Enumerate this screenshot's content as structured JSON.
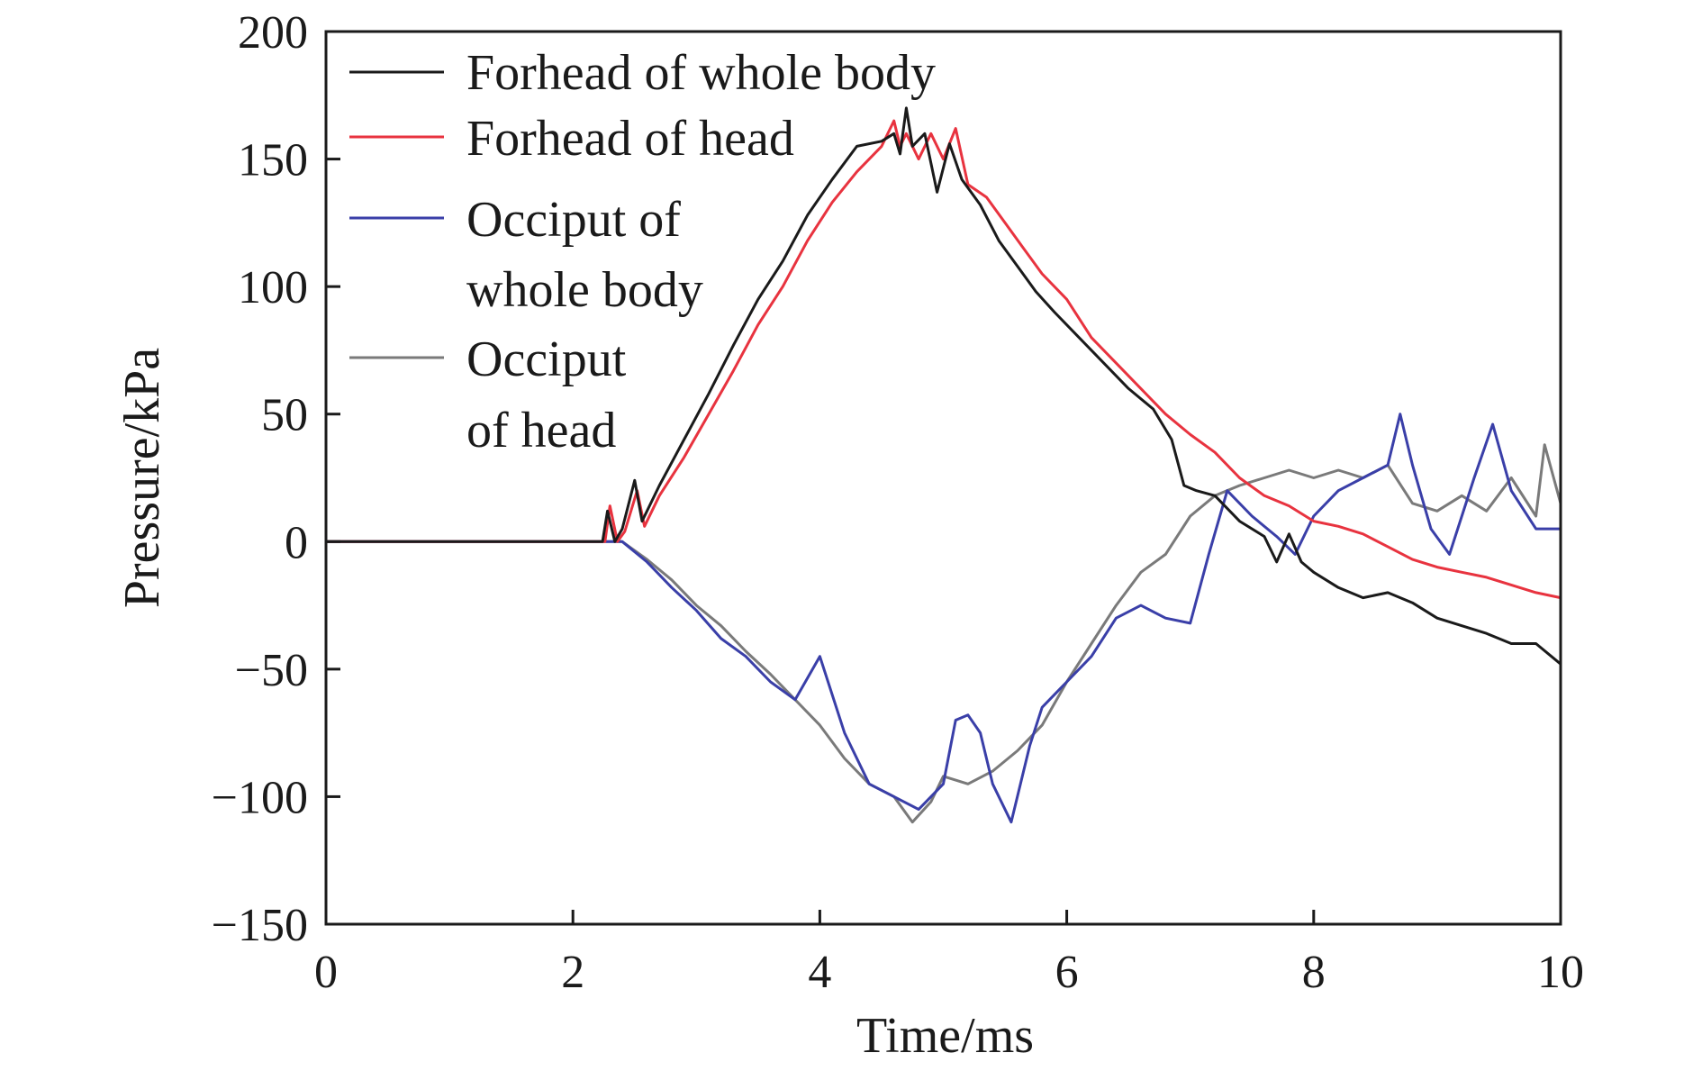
{
  "chart_data": {
    "type": "line",
    "title": "",
    "xlabel": "Time/ms",
    "ylabel": "Pressure/kPa",
    "xlim": [
      0,
      10
    ],
    "ylim": [
      -150,
      200
    ],
    "xticks": [
      0,
      2,
      4,
      6,
      8,
      10
    ],
    "yticks": [
      -150,
      -100,
      -50,
      0,
      50,
      100,
      150,
      200
    ],
    "xtick_labels": [
      "0",
      "2",
      "4",
      "6",
      "8",
      "10"
    ],
    "ytick_labels": [
      "−150",
      "−100",
      "−50",
      "0",
      "50",
      "100",
      "150",
      "200"
    ],
    "grid": false,
    "legend_position": "top-left",
    "series": [
      {
        "name": "Forhead of whole body",
        "color": "#1a1a1a",
        "x": [
          0,
          2.24,
          2.28,
          2.34,
          2.4,
          2.5,
          2.56,
          2.7,
          2.9,
          3.1,
          3.3,
          3.5,
          3.7,
          3.9,
          4.1,
          4.3,
          4.5,
          4.6,
          4.65,
          4.7,
          4.75,
          4.85,
          4.95,
          5.05,
          5.15,
          5.3,
          5.45,
          5.6,
          5.75,
          5.9,
          6.1,
          6.3,
          6.5,
          6.7,
          6.85,
          6.95,
          7.05,
          7.2,
          7.4,
          7.6,
          7.7,
          7.8,
          7.9,
          8.0,
          8.2,
          8.4,
          8.6,
          8.8,
          9.0,
          9.2,
          9.4,
          9.6,
          9.8,
          10.0
        ],
        "y": [
          0,
          0,
          12,
          0,
          5,
          24,
          8,
          22,
          40,
          58,
          77,
          95,
          110,
          128,
          142,
          155,
          157,
          160,
          152,
          170,
          155,
          160,
          137,
          156,
          142,
          132,
          118,
          108,
          98,
          90,
          80,
          70,
          60,
          52,
          40,
          22,
          20,
          18,
          8,
          2,
          -8,
          3,
          -8,
          -12,
          -18,
          -22,
          -20,
          -24,
          -30,
          -33,
          -36,
          -40,
          -40,
          -48
        ]
      },
      {
        "name": "Forhead of head",
        "color": "#e8333f",
        "x": [
          0,
          2.26,
          2.3,
          2.36,
          2.42,
          2.52,
          2.58,
          2.7,
          2.9,
          3.1,
          3.3,
          3.5,
          3.7,
          3.9,
          4.1,
          4.3,
          4.5,
          4.6,
          4.65,
          4.7,
          4.8,
          4.9,
          5.0,
          5.1,
          5.2,
          5.35,
          5.5,
          5.65,
          5.8,
          6.0,
          6.2,
          6.4,
          6.6,
          6.8,
          7.0,
          7.2,
          7.4,
          7.6,
          7.8,
          8.0,
          8.2,
          8.4,
          8.6,
          8.8,
          9.0,
          9.2,
          9.4,
          9.6,
          9.8,
          10.0
        ],
        "y": [
          0,
          0,
          14,
          0,
          4,
          20,
          6,
          18,
          33,
          50,
          67,
          85,
          100,
          118,
          133,
          145,
          155,
          165,
          155,
          160,
          150,
          160,
          150,
          162,
          140,
          135,
          125,
          115,
          105,
          95,
          80,
          70,
          60,
          50,
          42,
          35,
          25,
          18,
          14,
          8,
          6,
          3,
          -2,
          -7,
          -10,
          -12,
          -14,
          -17,
          -20,
          -22
        ]
      },
      {
        "name": "Occiput of whole body",
        "color": "#3a3fa8",
        "x": [
          0,
          2.4,
          2.6,
          2.8,
          3.0,
          3.2,
          3.4,
          3.6,
          3.8,
          4.0,
          4.2,
          4.4,
          4.6,
          4.8,
          5.0,
          5.1,
          5.2,
          5.3,
          5.4,
          5.55,
          5.7,
          5.8,
          6.0,
          6.2,
          6.4,
          6.6,
          6.8,
          7.0,
          7.15,
          7.3,
          7.5,
          7.7,
          7.85,
          8.0,
          8.2,
          8.4,
          8.6,
          8.7,
          8.8,
          8.95,
          9.1,
          9.3,
          9.45,
          9.6,
          9.8,
          10.0
        ],
        "y": [
          0,
          0,
          -8,
          -18,
          -27,
          -38,
          -45,
          -55,
          -62,
          -45,
          -75,
          -95,
          -100,
          -105,
          -95,
          -70,
          -68,
          -75,
          -95,
          -110,
          -80,
          -65,
          -55,
          -45,
          -30,
          -25,
          -30,
          -32,
          -5,
          20,
          10,
          2,
          -5,
          10,
          20,
          25,
          30,
          50,
          30,
          5,
          -5,
          25,
          46,
          20,
          5,
          5
        ]
      },
      {
        "name": "Occiput of head",
        "color": "#7a7a7a",
        "x": [
          0,
          2.4,
          2.6,
          2.8,
          3.0,
          3.2,
          3.4,
          3.6,
          3.8,
          4.0,
          4.2,
          4.4,
          4.6,
          4.75,
          4.9,
          5.0,
          5.2,
          5.4,
          5.6,
          5.8,
          6.0,
          6.2,
          6.4,
          6.6,
          6.8,
          7.0,
          7.2,
          7.4,
          7.6,
          7.8,
          8.0,
          8.2,
          8.4,
          8.6,
          8.8,
          9.0,
          9.2,
          9.4,
          9.6,
          9.8,
          9.87,
          10.0
        ],
        "y": [
          0,
          0,
          -7,
          -15,
          -25,
          -33,
          -43,
          -52,
          -62,
          -72,
          -85,
          -95,
          -100,
          -110,
          -102,
          -92,
          -95,
          -90,
          -82,
          -72,
          -55,
          -40,
          -25,
          -12,
          -5,
          10,
          18,
          22,
          25,
          28,
          25,
          28,
          25,
          30,
          15,
          12,
          18,
          12,
          25,
          10,
          38,
          15
        ]
      }
    ]
  }
}
